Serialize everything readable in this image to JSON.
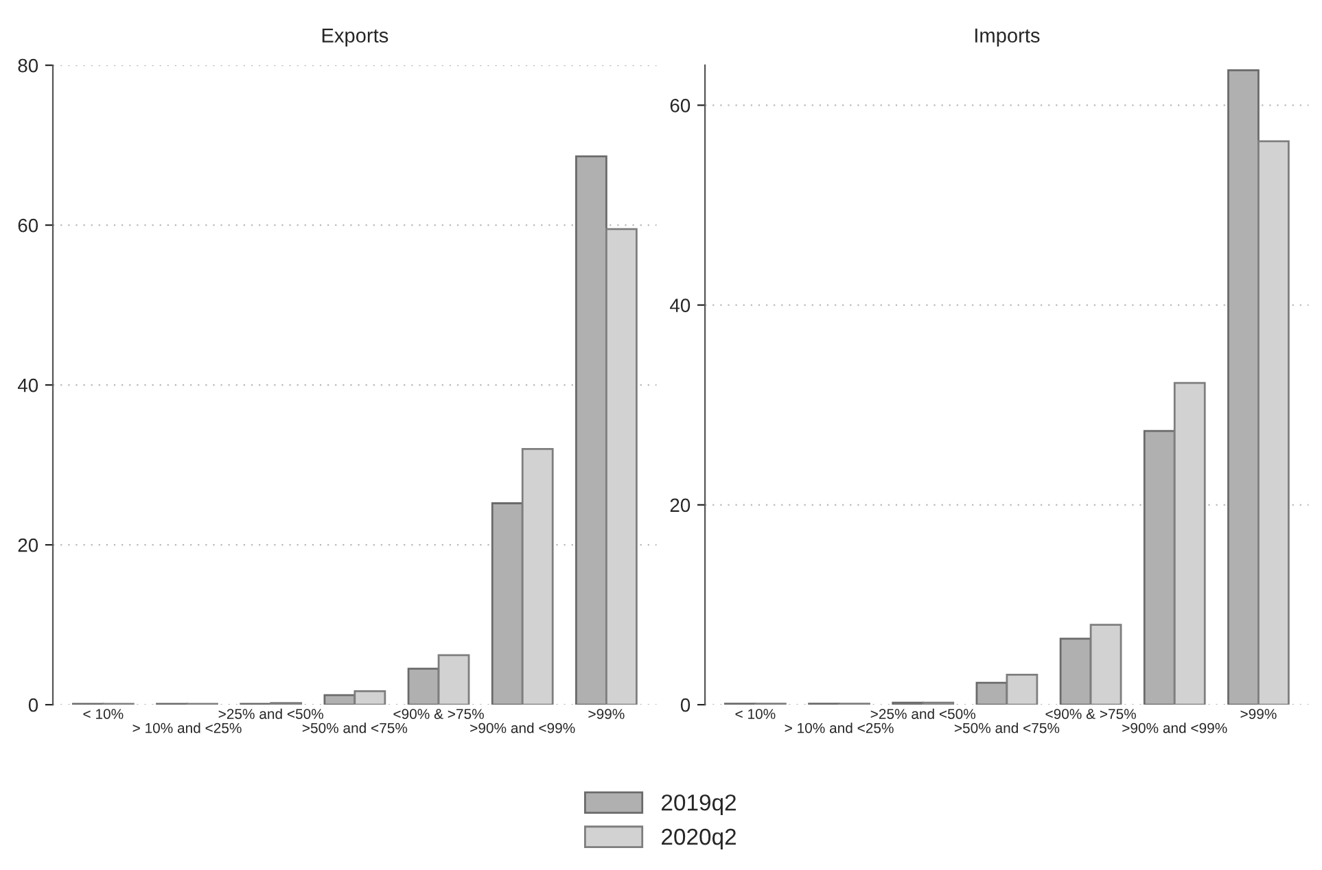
{
  "chart_data": [
    {
      "type": "bar",
      "title": "Exports",
      "categories": [
        "< 10%",
        "> 10% and <25%",
        ">25% and <50%",
        ">50% and <75%",
        "<90% & >75%",
        ">90% and <99%",
        ">99%"
      ],
      "series": [
        {
          "name": "2019q2",
          "color": "#b0b0b0",
          "values": [
            0.1,
            0.1,
            0.1,
            1.2,
            4.5,
            25.2,
            68.6
          ]
        },
        {
          "name": "2020q2",
          "color": "#d2d2d2",
          "values": [
            0.1,
            0.1,
            0.2,
            1.7,
            6.2,
            32.0,
            59.5
          ]
        }
      ],
      "ylim": [
        0,
        80
      ],
      "yticks": [
        0,
        20,
        40,
        60,
        80
      ],
      "grid": "y",
      "legend": "bottom"
    },
    {
      "type": "bar",
      "title": "Imports",
      "categories": [
        "< 10%",
        "> 10% and <25%",
        ">25% and <50%",
        ">50% and <75%",
        "<90% & >75%",
        ">90% and <99%",
        ">99%"
      ],
      "series": [
        {
          "color": "#b0b0b0",
          "values": [
            0.1,
            0.1,
            0.2,
            2.2,
            6.6,
            27.4,
            63.5
          ]
        },
        {
          "color": "#d2d2d2",
          "values": [
            0.1,
            0.1,
            0.2,
            3.0,
            8.0,
            32.2,
            56.4
          ]
        }
      ],
      "ylim": [
        0,
        64
      ],
      "yticks": [
        0,
        20,
        40,
        60
      ],
      "grid": "y"
    }
  ]
}
